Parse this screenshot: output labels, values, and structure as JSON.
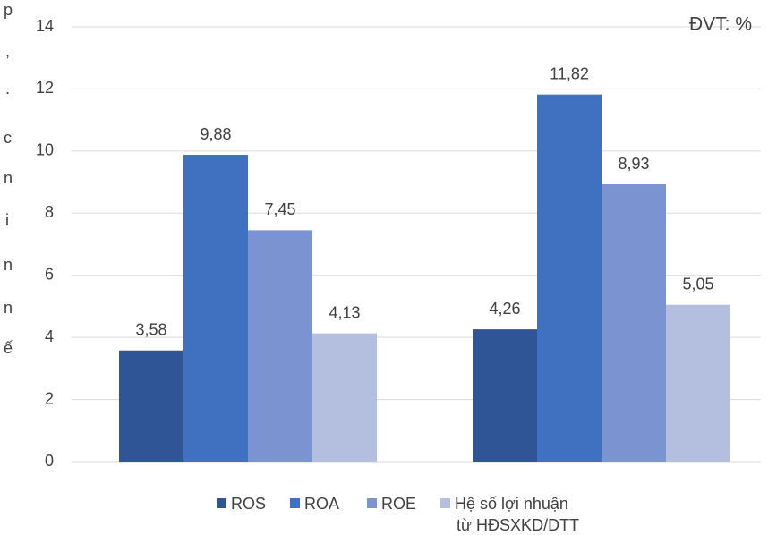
{
  "chart_data": {
    "type": "bar",
    "annotation": "ĐVT: %",
    "categories": [
      null,
      null
    ],
    "series": [
      {
        "name": "ROS",
        "color": "#2f5597",
        "values": [
          3.58,
          4.26
        ],
        "value_labels": [
          "3,58",
          "4,26"
        ]
      },
      {
        "name": "ROA",
        "color": "#4070c0",
        "values": [
          9.88,
          11.82
        ],
        "value_labels": [
          "9,88",
          "11,82"
        ]
      },
      {
        "name": "ROE",
        "color": "#7b93d0",
        "values": [
          7.45,
          8.93
        ],
        "value_labels": [
          "7,45",
          "8,93"
        ]
      },
      {
        "name": "Hệ số lợi nhuận\ntừ HĐSXKD/DTT",
        "color": "#b4bfe0",
        "values": [
          4.13,
          5.05
        ],
        "value_labels": [
          "4,13",
          "5,05"
        ]
      }
    ],
    "ylim": [
      0,
      14
    ],
    "yticks": [
      0,
      2,
      4,
      6,
      8,
      10,
      12,
      14
    ],
    "grid": true,
    "legend": "bottom"
  },
  "margin_text": [
    "p",
    ",",
    ".",
    "c",
    "n",
    "i",
    "n",
    "n",
    "ế"
  ]
}
